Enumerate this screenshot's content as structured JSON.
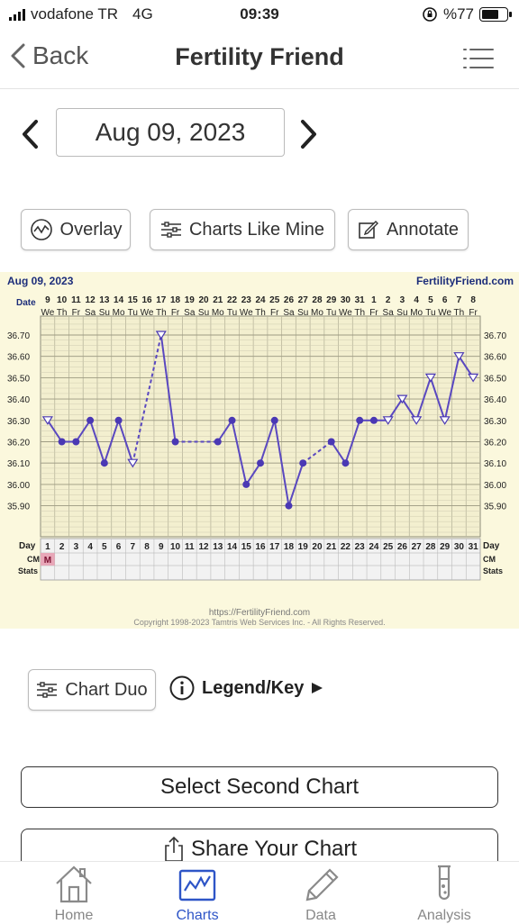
{
  "status": {
    "carrier": "vodafone TR",
    "network": "4G",
    "time": "09:39",
    "battery": "%77",
    "battery_level": 0.77
  },
  "nav": {
    "back_label": "Back",
    "title": "Fertility Friend"
  },
  "date_nav": {
    "date": "Aug 09, 2023"
  },
  "actions": {
    "overlay": "Overlay",
    "charts_like_mine": "Charts Like Mine",
    "annotate": "Annotate"
  },
  "chart_data": {
    "type": "line",
    "chart_date": "Aug 09, 2023",
    "brand": "FertilityFriend.com",
    "date_row_label": "Date",
    "day_row_label": "Day",
    "cm_row_label": "CM",
    "stats_row_label": "Stats",
    "dates": [
      "9",
      "10",
      "11",
      "12",
      "13",
      "14",
      "15",
      "16",
      "17",
      "18",
      "19",
      "20",
      "21",
      "22",
      "23",
      "24",
      "25",
      "26",
      "27",
      "28",
      "29",
      "30",
      "31",
      "1",
      "2",
      "3",
      "4",
      "5",
      "6",
      "7",
      "8"
    ],
    "weekdays": [
      "We",
      "Th",
      "Fr",
      "Sa",
      "Su",
      "Mo",
      "Tu",
      "We",
      "Th",
      "Fr",
      "Sa",
      "Su",
      "Mo",
      "Tu",
      "We",
      "Th",
      "Fr",
      "Sa",
      "Su",
      "Mo",
      "Tu",
      "We",
      "Th",
      "Fr",
      "Sa",
      "Su",
      "Mo",
      "Tu",
      "We",
      "Th",
      "Fr"
    ],
    "cycle_days": [
      "1",
      "2",
      "3",
      "4",
      "5",
      "6",
      "7",
      "8",
      "9",
      "10",
      "11",
      "12",
      "13",
      "14",
      "15",
      "16",
      "17",
      "18",
      "19",
      "20",
      "21",
      "22",
      "23",
      "24",
      "25",
      "26",
      "27",
      "28",
      "29",
      "30",
      "31"
    ],
    "cm_marks": [
      "M",
      "",
      "",
      "",
      "",
      "",
      "",
      "",
      "",
      "",
      "",
      "",
      "",
      "",
      "",
      "",
      "",
      "",
      "",
      "",
      "",
      "",
      "",
      "",
      "",
      "",
      "",
      "",
      "",
      "",
      ""
    ],
    "ylim": [
      35.85,
      36.75
    ],
    "y_ticks": [
      "36.70",
      "36.60",
      "36.50",
      "36.40",
      "36.30",
      "36.20",
      "36.10",
      "36.00",
      "35.90"
    ],
    "temps": [
      36.3,
      36.2,
      36.2,
      36.3,
      36.1,
      36.3,
      36.1,
      null,
      36.7,
      36.2,
      null,
      null,
      36.2,
      36.3,
      36.0,
      36.1,
      36.3,
      35.9,
      36.1,
      null,
      36.2,
      36.1,
      36.3,
      36.3,
      36.3,
      36.4,
      36.3,
      36.5,
      36.3,
      36.6,
      36.5
    ],
    "markers": [
      "tri",
      "dot",
      "dot",
      "dot",
      "dot",
      "dot",
      "tri",
      "",
      "tri",
      "dot",
      "",
      "",
      "dot",
      "dot",
      "dot",
      "dot",
      "dot",
      "dot",
      "dot",
      "",
      "dot",
      "dot",
      "dot",
      "dot",
      "tri",
      "tri",
      "tri",
      "tri",
      "tri",
      "tri",
      "tri"
    ],
    "source_url": "https://FertilityFriend.com",
    "copyright": "Copyright 1998-2023 Tamtris Web Services Inc. - All Rights Reserved."
  },
  "chart_duo": {
    "label": "Chart Duo",
    "legend": "Legend/Key"
  },
  "buttons": {
    "select_second": "Select Second Chart",
    "share": "Share Your Chart"
  },
  "tabs": {
    "home": "Home",
    "charts": "Charts",
    "data": "Data",
    "analysis": "Analysis"
  }
}
